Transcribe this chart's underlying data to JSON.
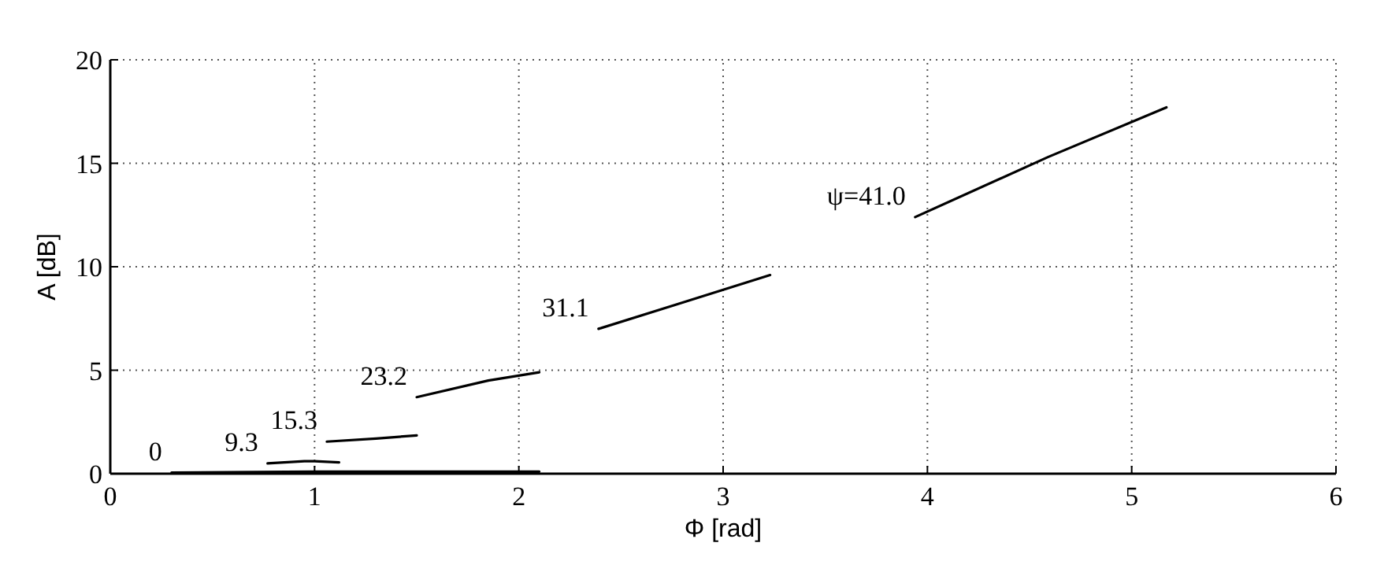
{
  "chart_data": {
    "type": "line",
    "xlabel": "Φ [rad]",
    "ylabel": "A [dB]",
    "xlim": [
      0,
      6
    ],
    "ylim": [
      0,
      20
    ],
    "xticks": [
      0,
      1,
      2,
      3,
      4,
      5,
      6
    ],
    "yticks": [
      0,
      5,
      10,
      15,
      20
    ],
    "grid": true,
    "line_style": "solid",
    "series": [
      {
        "name": "0",
        "color": "#000000",
        "x": [
          0.3,
          1.0,
          2.1
        ],
        "values": [
          0.05,
          0.1,
          0.1
        ]
      },
      {
        "name": "9.3",
        "color": "#000000",
        "x": [
          0.77,
          0.95,
          1.0,
          1.12
        ],
        "values": [
          0.5,
          0.6,
          0.6,
          0.55
        ]
      },
      {
        "name": "15.3",
        "color": "#000000",
        "x": [
          1.06,
          1.3,
          1.5
        ],
        "values": [
          1.55,
          1.7,
          1.85
        ]
      },
      {
        "name": "23.2",
        "color": "#000000",
        "x": [
          1.5,
          1.85,
          2.1
        ],
        "values": [
          3.7,
          4.5,
          4.9
        ]
      },
      {
        "name": "31.1",
        "color": "#000000",
        "x": [
          2.39,
          2.78,
          3.23
        ],
        "values": [
          7.0,
          8.2,
          9.6
        ]
      },
      {
        "name": "ψ=41.0",
        "color": "#000000",
        "x": [
          3.94,
          4.59,
          5.17
        ],
        "values": [
          12.4,
          15.3,
          17.7
        ]
      }
    ]
  }
}
